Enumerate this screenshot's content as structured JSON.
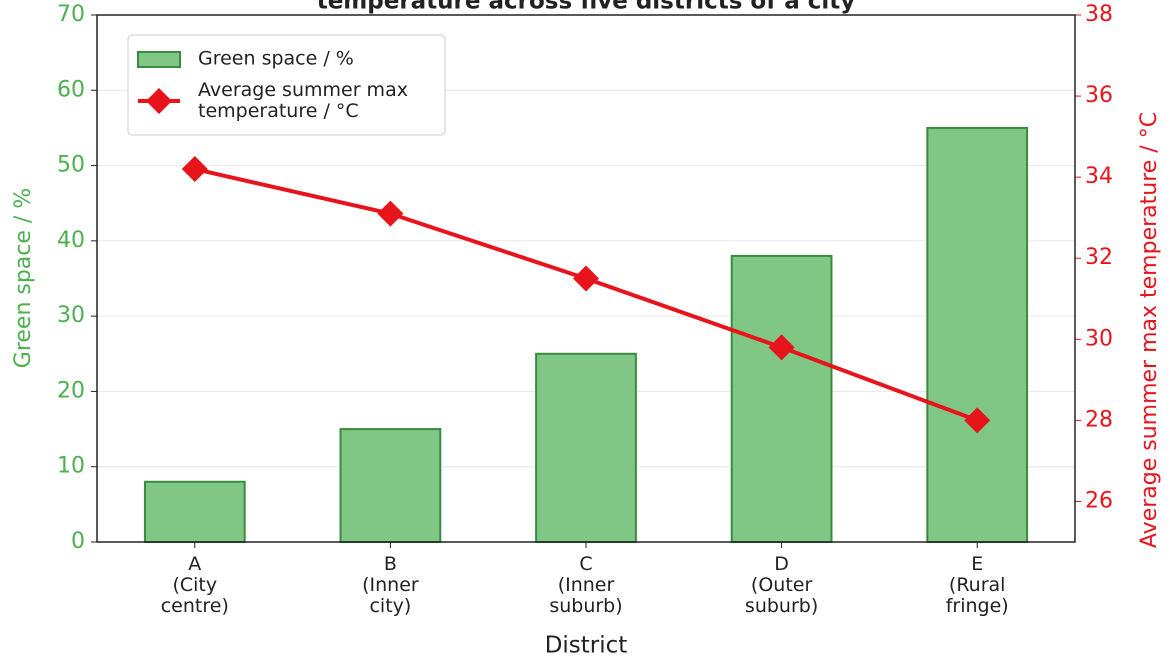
{
  "chart_data": {
    "type": "bar_line",
    "title": "temperature across five districts of a city",
    "x_label": "District",
    "y_label": "Green space / %",
    "y2_label": "Average summer max temperature / °C",
    "categories": [
      "A\n(City\ncentre)",
      "B\n(Inner\ncity)",
      "C\n(Inner\nsuburb)",
      "D\n(Outer\nsuburb)",
      "E\n(Rural\nfringe)"
    ],
    "series": [
      {
        "name": "Green space / %",
        "type": "bar",
        "color": "#80c684",
        "edge_color": "#3a8a40",
        "values": [
          8,
          15,
          25,
          38,
          55
        ]
      },
      {
        "name": "Average summer max\ntemperature / °C",
        "type": "line",
        "axis": "y2",
        "color": "#e8141c",
        "values": [
          34.2,
          33.1,
          31.5,
          29.8,
          28.0
        ]
      }
    ],
    "ylim": [
      0,
      70
    ],
    "yticks": [
      0,
      10,
      20,
      30,
      40,
      50,
      60,
      70
    ],
    "y2lim": [
      25,
      38
    ],
    "y2ticks": [
      26,
      28,
      30,
      32,
      34,
      36,
      38
    ],
    "y_color": "#4caf50",
    "y2_color": "#e8141c",
    "grid": true,
    "legend": "upper left"
  }
}
